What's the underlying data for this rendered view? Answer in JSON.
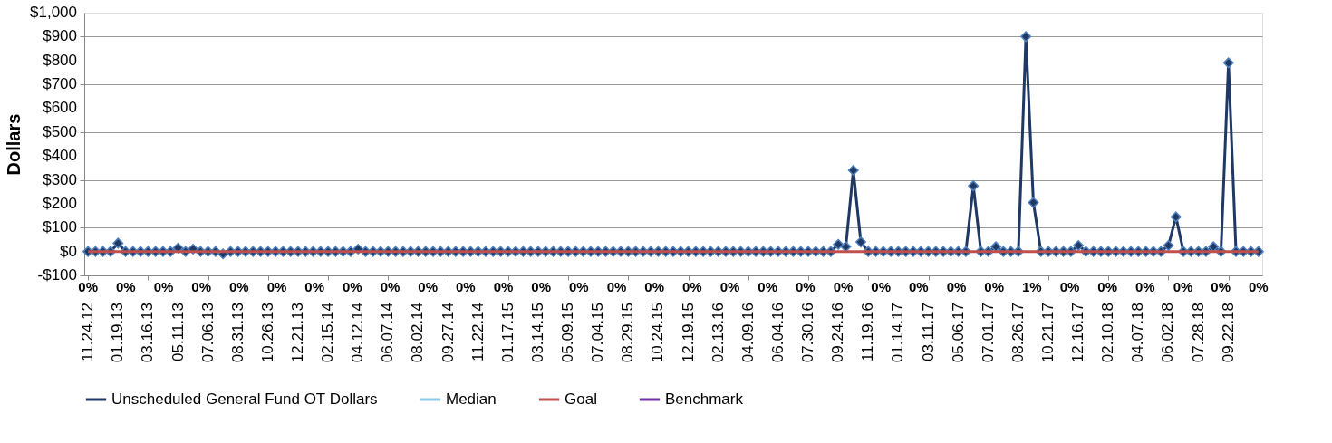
{
  "chart_data": {
    "type": "line",
    "ylabel": "Dollars",
    "categories": [
      "11.24.12",
      null,
      null,
      null,
      "01.19.13",
      null,
      null,
      null,
      "03.16.13",
      null,
      null,
      null,
      "05.11.13",
      null,
      null,
      null,
      "07.06.13",
      null,
      null,
      null,
      "08.31.13",
      null,
      null,
      null,
      "10.26.13",
      null,
      null,
      null,
      "12.21.13",
      null,
      null,
      null,
      "02.15.14",
      null,
      null,
      null,
      "04.12.14",
      null,
      null,
      null,
      "06.07.14",
      null,
      null,
      null,
      "08.02.14",
      null,
      null,
      null,
      "09.27.14",
      null,
      null,
      null,
      "11.22.14",
      null,
      null,
      null,
      "01.17.15",
      null,
      null,
      null,
      "03.14.15",
      null,
      null,
      null,
      "05.09.15",
      null,
      null,
      null,
      "07.04.15",
      null,
      null,
      null,
      "08.29.15",
      null,
      null,
      null,
      "10.24.15",
      null,
      null,
      null,
      "12.19.15",
      null,
      null,
      null,
      "02.13.16",
      null,
      null,
      null,
      "04.09.16",
      null,
      null,
      null,
      "06.04.16",
      null,
      null,
      null,
      "07.30.16",
      null,
      null,
      null,
      "09.24.16",
      null,
      null,
      null,
      "11.19.16",
      null,
      null,
      null,
      "01.14.17",
      null,
      null,
      null,
      "03.11.17",
      null,
      null,
      null,
      "05.06.17",
      null,
      null,
      null,
      "07.01.17",
      null,
      null,
      null,
      "08.26.17",
      null,
      null,
      null,
      "10.21.17",
      null,
      null,
      null,
      "12.16.17",
      null,
      null,
      null,
      "02.10.18",
      null,
      null,
      null,
      "04.07.18",
      null,
      null,
      null,
      "06.02.18",
      null,
      null,
      null,
      "07.28.18",
      null,
      null,
      null,
      "09.22.18",
      null,
      null,
      null,
      null
    ],
    "series": [
      {
        "name": "Unscheduled General Fund OT Dollars",
        "color": "#1f3864",
        "marker": "diamond",
        "values": [
          0,
          0,
          0,
          0,
          35,
          0,
          0,
          0,
          0,
          0,
          0,
          0,
          15,
          0,
          10,
          0,
          0,
          0,
          -10,
          0,
          0,
          0,
          0,
          0,
          0,
          0,
          0,
          0,
          0,
          0,
          0,
          0,
          0,
          0,
          0,
          0,
          10,
          0,
          0,
          0,
          0,
          0,
          0,
          0,
          0,
          0,
          0,
          0,
          0,
          0,
          0,
          0,
          0,
          0,
          0,
          0,
          0,
          0,
          0,
          0,
          0,
          0,
          0,
          0,
          0,
          0,
          0,
          0,
          0,
          0,
          0,
          0,
          0,
          0,
          0,
          0,
          0,
          0,
          0,
          0,
          0,
          0,
          0,
          0,
          0,
          0,
          0,
          0,
          0,
          0,
          0,
          0,
          0,
          0,
          0,
          0,
          0,
          0,
          0,
          0,
          30,
          20,
          340,
          40,
          0,
          0,
          0,
          0,
          0,
          0,
          0,
          0,
          0,
          0,
          0,
          0,
          0,
          0,
          275,
          0,
          0,
          20,
          0,
          0,
          0,
          900,
          205,
          0,
          0,
          0,
          0,
          0,
          25,
          0,
          0,
          0,
          0,
          0,
          0,
          0,
          0,
          0,
          0,
          0,
          25,
          145,
          0,
          0,
          0,
          0,
          20,
          0,
          790,
          0,
          0,
          0,
          0
        ]
      },
      {
        "name": "Median",
        "color": "#8ecae6",
        "values": [
          null,
          null,
          null,
          null,
          null,
          null,
          null,
          null,
          null,
          null,
          null,
          null,
          null,
          null,
          null,
          null,
          null,
          null,
          null,
          null,
          null,
          null,
          null,
          null,
          null,
          null,
          null,
          null,
          null,
          null,
          null,
          null,
          null,
          null,
          null,
          null,
          null,
          null,
          null,
          null,
          null,
          null,
          null,
          null,
          null,
          null,
          null,
          null,
          null,
          null,
          null,
          null,
          null,
          null,
          null,
          null,
          null,
          null,
          null,
          null,
          null,
          null,
          null,
          null,
          null,
          null,
          null,
          null,
          null,
          null,
          null,
          null,
          null,
          null,
          null,
          null,
          null,
          null,
          null,
          null,
          null,
          null,
          null,
          null,
          null,
          null,
          null,
          null,
          null,
          null,
          null,
          null,
          null,
          null,
          null,
          null,
          null,
          null,
          null,
          null,
          null,
          null,
          null,
          null,
          null,
          null,
          null,
          null,
          null,
          null,
          null,
          null,
          null,
          null,
          null,
          null,
          null,
          null,
          null,
          null,
          null,
          null,
          null,
          null,
          null,
          null,
          null,
          null,
          null,
          null,
          null,
          null,
          null,
          null,
          null,
          null,
          null,
          null,
          null,
          null,
          null,
          null,
          null,
          null,
          null,
          null,
          null,
          null,
          null,
          null,
          null,
          null,
          null,
          null,
          null,
          null,
          null
        ]
      },
      {
        "name": "Goal",
        "color": "#c0504d",
        "values": [
          0,
          0,
          0,
          0,
          0,
          0,
          0,
          0,
          0,
          0,
          0,
          0,
          0,
          0,
          0,
          0,
          0,
          0,
          0,
          0,
          0,
          0,
          0,
          0,
          0,
          0,
          0,
          0,
          0,
          0,
          0,
          0,
          0,
          0,
          0,
          0,
          0,
          0,
          0,
          0,
          0,
          0,
          0,
          0,
          0,
          0,
          0,
          0,
          0,
          0,
          0,
          0,
          0,
          0,
          0,
          0,
          0,
          0,
          0,
          0,
          0,
          0,
          0,
          0,
          0,
          0,
          0,
          0,
          0,
          0,
          0,
          0,
          0,
          0,
          0,
          0,
          0,
          0,
          0,
          0,
          0,
          0,
          0,
          0,
          0,
          0,
          0,
          0,
          0,
          0,
          0,
          0,
          0,
          0,
          0,
          0,
          0,
          0,
          0,
          0,
          0,
          0,
          0,
          0,
          0,
          0,
          0,
          0,
          0,
          0,
          0,
          0,
          0,
          0,
          0,
          0,
          0,
          0,
          0,
          0,
          0,
          0,
          0,
          0,
          0,
          0,
          0,
          0,
          0,
          0,
          0,
          0,
          0,
          0,
          0,
          0,
          0,
          0,
          0,
          0,
          0,
          0,
          0,
          0,
          0,
          0,
          0,
          0,
          0,
          0,
          0,
          0,
          0,
          0,
          0,
          0,
          0
        ]
      },
      {
        "name": "Benchmark",
        "color": "#7030a0",
        "values": [
          null,
          null,
          null,
          null,
          null,
          null,
          null,
          null,
          null,
          null,
          null,
          null,
          null,
          null,
          null,
          null,
          null,
          null,
          null,
          null,
          null,
          null,
          null,
          null,
          null,
          null,
          null,
          null,
          null,
          null,
          null,
          null,
          null,
          null,
          null,
          null,
          null,
          null,
          null,
          null,
          null,
          null,
          null,
          null,
          null,
          null,
          null,
          null,
          null,
          null,
          null,
          null,
          null,
          null,
          null,
          null,
          null,
          null,
          null,
          null,
          null,
          null,
          null,
          null,
          null,
          null,
          null,
          null,
          null,
          null,
          null,
          null,
          null,
          null,
          null,
          null,
          null,
          null,
          null,
          null,
          null,
          null,
          null,
          null,
          null,
          null,
          null,
          null,
          null,
          null,
          null,
          null,
          null,
          null,
          null,
          null,
          null,
          null,
          null,
          null,
          null,
          null,
          null,
          null,
          null,
          null,
          null,
          null,
          null,
          null,
          null,
          null,
          null,
          null,
          null,
          null,
          null,
          null,
          null,
          null,
          null,
          null,
          null,
          null,
          null,
          null,
          null,
          null,
          null,
          null,
          null,
          null,
          null,
          null,
          null,
          null,
          null,
          null,
          null,
          null,
          null,
          null,
          null,
          null,
          null,
          null,
          null,
          null,
          null,
          null,
          null,
          null,
          null,
          null,
          null,
          null,
          null
        ]
      }
    ],
    "ylim": [
      -100,
      1000
    ],
    "yticks": [
      {
        "value": -100,
        "label": "-$100"
      },
      {
        "value": 0,
        "label": "$0"
      },
      {
        "value": 100,
        "label": "$100"
      },
      {
        "value": 200,
        "label": "$200"
      },
      {
        "value": 300,
        "label": "$300"
      },
      {
        "value": 400,
        "label": "$400"
      },
      {
        "value": 500,
        "label": "$500"
      },
      {
        "value": 600,
        "label": "$600"
      },
      {
        "value": 700,
        "label": "$700"
      },
      {
        "value": 800,
        "label": "$800"
      },
      {
        "value": 900,
        "label": "$900"
      },
      {
        "value": 1000,
        "label": "$1,000"
      }
    ],
    "annotations": [
      "0%",
      "0%",
      "0%",
      "0%",
      "0%",
      "0%",
      "0%",
      "0%",
      "0%",
      "0%",
      "0%",
      "0%",
      "0%",
      "0%",
      "0%",
      "0%",
      "0%",
      "0%",
      "0%",
      "0%",
      "0%",
      "0%",
      "0%",
      "0%",
      "0%",
      "1%",
      "0%",
      "0%",
      "0%",
      "0%",
      "0%",
      "0%"
    ],
    "grid": "y",
    "legend": "bottom",
    "line_style": "solid"
  }
}
